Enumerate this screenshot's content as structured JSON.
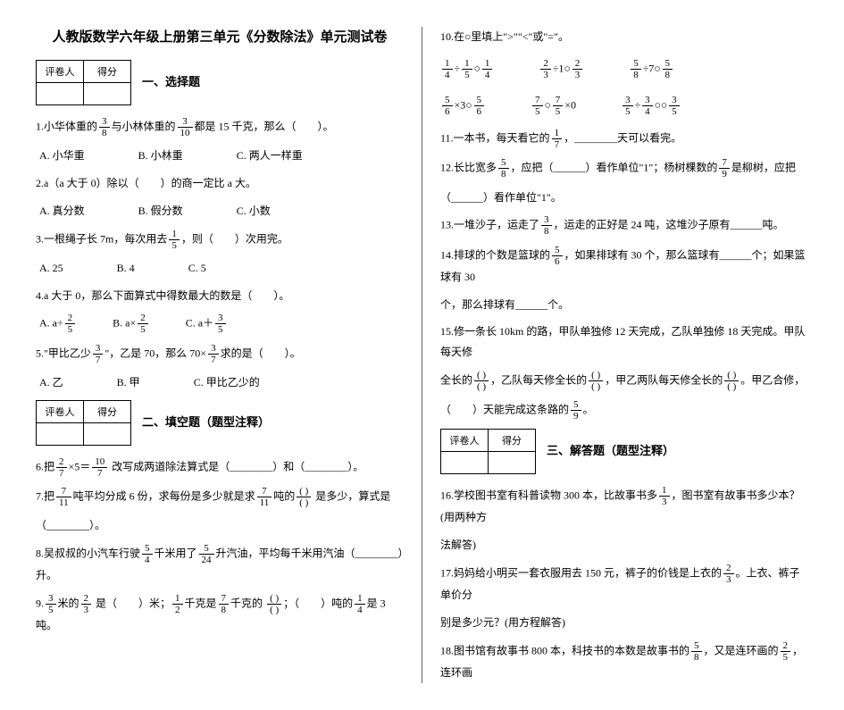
{
  "title": "人教版数学六年级上册第三单元《分数除法》单元测试卷",
  "eval": {
    "c1": "评卷人",
    "c2": "得分"
  },
  "sec1_title": "一、选择题",
  "q1": {
    "pre": "1.小华体重的",
    "f1n": "3",
    "f1d": "8",
    "mid": "与小林体重的",
    "f2n": "3",
    "f2d": "10",
    "post": "都是 15 千克，那么（　　）。"
  },
  "q1o": {
    "a": "A. 小华重",
    "b": "B. 小林重",
    "c": "C. 两人一样重"
  },
  "q2": "2.a（a 大于 0）除以（　　）的商一定比 a 大。",
  "q2o": {
    "a": "A. 真分数",
    "b": "B. 假分数",
    "c": "C. 小数"
  },
  "q3": {
    "pre": "3.一根绳子长 7m，每次用去",
    "fn": "1",
    "fd": "5",
    "post": "，则（　　）次用完。"
  },
  "q3o": {
    "a": "A. 25",
    "b": "B. 4",
    "c": "C. 5"
  },
  "q4": "4.a 大于 0，那么下面算式中得数最大的数是（　　）。",
  "q4o": {
    "a_pre": "A. a÷",
    "a_fn": "2",
    "a_fd": "5",
    "b_pre": "B. a×",
    "b_fn": "2",
    "b_fd": "5",
    "c_pre": "C. a＋",
    "c_fn": "3",
    "c_fd": "5"
  },
  "q5": {
    "pre": "5.\"甲比乙少",
    "f1n": "3",
    "f1d": "7",
    "mid": "\"，乙是 70，那么 70×",
    "f2n": "3",
    "f2d": "7",
    "post": "求的是（　　）。"
  },
  "q5o": {
    "a": "A. 乙",
    "b": "B. 甲",
    "c": "C. 甲比乙少的"
  },
  "sec2_title": "二、填空题（题型注释）",
  "q6": {
    "pre": "6.把",
    "f1n": "2",
    "f1d": "7",
    "mid": "×5＝",
    "f2n": "10",
    "f2d": "7",
    "post": " 改写成两道除法算式是（________）和（________）。"
  },
  "q7": {
    "pre": "7.把",
    "f1n": "7",
    "f1d": "11",
    "mid": "吨平均分成 6 份，求每份是多少就是求",
    "f2n": "7",
    "f2d": "11",
    "mid2": "吨的",
    "boxn": "(   )",
    "boxd": "(   )",
    "post": " 是多少，算式是"
  },
  "q7b": "（________）。",
  "q8": {
    "pre": "8.吴叔叔的小汽车行驶",
    "f1n": "5",
    "f1d": "4",
    "mid": "千米用了",
    "f2n": "5",
    "f2d": "24",
    "post": "升汽油，平均每千米用汽油（________）升。"
  },
  "q9": {
    "pre": "9.",
    "f1n": "3",
    "f1d": "5",
    "mid": "米的",
    "f2n": "2",
    "f2d": "3",
    "mid2": " 是（　　）米；",
    "f3n": "1",
    "f3d": "2",
    "mid3": "千克是",
    "f4n": "7",
    "f4d": "8",
    "mid4": "千克的 ",
    "boxn": "(   )",
    "boxd": "(   )",
    "post": "；（　　）吨的",
    "f5n": "1",
    "f5d": "4",
    "post2": "是 3 吨。"
  },
  "r_q10": "10.在○里填上\">\"\"<\"或\"=\"。",
  "r_row1": [
    {
      "an": "1",
      "ad": "4",
      "op": "÷",
      "bn": "1",
      "bd": "5",
      "circ": "○",
      "cn": "1",
      "cd": "4"
    },
    {
      "an": "2",
      "ad": "3",
      "op": "÷1",
      "circ": "○",
      "cn": "2",
      "cd": "3"
    },
    {
      "an": "5",
      "ad": "8",
      "op": "÷7",
      "circ": "○",
      "cn": "5",
      "cd": "8"
    }
  ],
  "r_row2": [
    {
      "an": "5",
      "ad": "6",
      "op": "×3",
      "circ": "○",
      "cn": "5",
      "cd": "6"
    },
    {
      "an": "7",
      "ad": "5",
      "circ": "○",
      "cn": "7",
      "cd": "5",
      "op2": "×0"
    },
    {
      "an": "3",
      "ad": "5",
      "op": "÷",
      "bn": "3",
      "bd": "4",
      "circ": "○",
      "cn": "3",
      "cd": "5"
    }
  ],
  "q11": {
    "pre": "11.一本书，每天看它的",
    "fn": "1",
    "fd": "7",
    "post": "，________天可以看完。"
  },
  "q12": {
    "pre": "12.长比宽多",
    "f1n": "5",
    "f1d": "8",
    "mid": "，应把（______）看作单位\"1\"；杨树棵数的",
    "f2n": "7",
    "f2d": "9",
    "post": "是柳树，应把"
  },
  "q12b": "（______）看作单位\"1\"。",
  "q13": {
    "pre": "13.一堆沙子，运走了",
    "fn": "3",
    "fd": "8",
    "post": "，运走的正好是 24 吨，这堆沙子原有______吨。"
  },
  "q14": {
    "pre": "14.排球的个数是篮球的",
    "fn": "5",
    "fd": "6",
    "post": "，如果排球有 30 个，那么篮球有______个；如果篮球有 30"
  },
  "q14b": "个，那么排球有______个。",
  "q15": "15.修一条长 10km 的路，甲队单独修 12 天完成，乙队单独修 18 天完成。甲队每天修",
  "q15b": {
    "pre": "全长的",
    "b1n": "(   )",
    "b1d": "(   )",
    "mid": "，乙队每天修全长的",
    "b2n": "(   )",
    "b2d": "(   )",
    "mid2": "，甲乙两队每天修全长的",
    "b3n": "(   )",
    "b3d": "(   )",
    "post": "。甲乙合修，"
  },
  "q15c": {
    "pre": "（　　）天能完成这条路的",
    "fn": "5",
    "fd": "9",
    "post": "。"
  },
  "sec3_title": "三、解答题（题型注释）",
  "q16": {
    "pre": "16.学校图书室有科普读物 300 本，比故事书多",
    "fn": "1",
    "fd": "3",
    "post": "，图书室有故事书多少本？(用两种方"
  },
  "q16b": "法解答)",
  "q17": {
    "pre": "17.妈妈给小明买一套衣服用去 150 元，裤子的价钱是上衣的",
    "fn": "2",
    "fd": "3",
    "post": "。上衣、裤子单价分"
  },
  "q17b": "别是多少元？(用方程解答)",
  "q18": {
    "pre": "18.图书馆有故事书 800 本，科技书的本数是故事书的",
    "f1n": "5",
    "f1d": "8",
    "mid": "，又是连环画的",
    "f2n": "2",
    "f2d": "5",
    "post": "，连环画"
  }
}
